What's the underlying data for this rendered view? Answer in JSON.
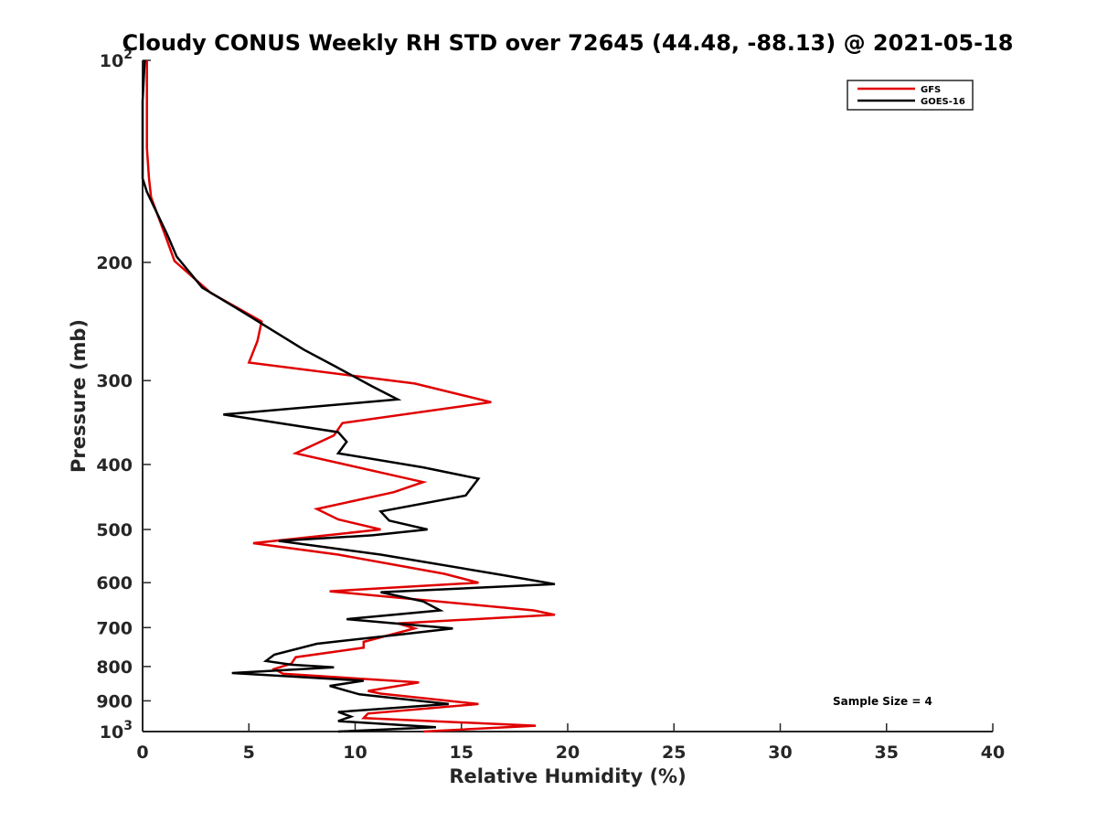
{
  "chart_data": {
    "type": "line",
    "title": "Cloudy CONUS Weekly RH STD over 72645 (44.48, -88.13) @ 2021-05-18",
    "xlabel": "Relative Humidity (%)",
    "ylabel": "Pressure (mb)",
    "xlim": [
      0,
      40
    ],
    "ylim": [
      100,
      1000
    ],
    "yscale": "log",
    "y_reversed": true,
    "x_ticks": [
      0,
      5,
      10,
      15,
      20,
      25,
      30,
      35,
      40
    ],
    "x_tick_labels": [
      "0",
      "5",
      "10",
      "15",
      "20",
      "25",
      "30",
      "35",
      "40"
    ],
    "y_ticks": [
      100,
      200,
      300,
      400,
      500,
      600,
      700,
      800,
      900,
      1000
    ],
    "y_tick_labels": [
      {
        "base": "10",
        "exp": "2"
      },
      {
        "base": "200",
        "exp": ""
      },
      {
        "base": "300",
        "exp": ""
      },
      {
        "base": "400",
        "exp": ""
      },
      {
        "base": "500",
        "exp": ""
      },
      {
        "base": "600",
        "exp": ""
      },
      {
        "base": "700",
        "exp": ""
      },
      {
        "base": "800",
        "exp": ""
      },
      {
        "base": "900",
        "exp": ""
      },
      {
        "base": "10",
        "exp": "3"
      }
    ],
    "grid": false,
    "legend_position": "top-right",
    "annotation": "Sample Size = 4",
    "series": [
      {
        "name": "GFS",
        "color": "#e00000",
        "points": [
          [
            0.2,
            100
          ],
          [
            0.2,
            115
          ],
          [
            0.2,
            135
          ],
          [
            0.3,
            150
          ],
          [
            0.4,
            160
          ],
          [
            1.0,
            180
          ],
          [
            1.5,
            199
          ],
          [
            3.2,
            222
          ],
          [
            5.6,
            245
          ],
          [
            5.4,
            262
          ],
          [
            5.0,
            282
          ],
          [
            12.8,
            303
          ],
          [
            16.4,
            323
          ],
          [
            9.4,
            347
          ],
          [
            9.0,
            362
          ],
          [
            7.2,
            385
          ],
          [
            13.2,
            425
          ],
          [
            11.8,
            440
          ],
          [
            8.2,
            466
          ],
          [
            9.2,
            483
          ],
          [
            11.2,
            500
          ],
          [
            5.2,
            524
          ],
          [
            9.2,
            545
          ],
          [
            14.2,
            582
          ],
          [
            15.8,
            600
          ],
          [
            8.8,
            618
          ],
          [
            18.4,
            660
          ],
          [
            19.4,
            670
          ],
          [
            12.0,
            690
          ],
          [
            12.8,
            702
          ],
          [
            10.4,
            735
          ],
          [
            10.4,
            750
          ],
          [
            7.2,
            775
          ],
          [
            7.0,
            792
          ],
          [
            6.2,
            807
          ],
          [
            6.6,
            820
          ],
          [
            13.0,
            845
          ],
          [
            10.6,
            870
          ],
          [
            11.2,
            878
          ],
          [
            15.8,
            910
          ],
          [
            10.6,
            940
          ],
          [
            10.4,
            955
          ],
          [
            18.5,
            980
          ],
          [
            13.2,
            1000
          ]
        ]
      },
      {
        "name": "GOES-16",
        "color": "#000000",
        "points": [
          [
            0.1,
            100
          ],
          [
            0.0,
            115
          ],
          [
            0.0,
            135
          ],
          [
            0.0,
            150
          ],
          [
            0.2,
            157
          ],
          [
            1.2,
            183
          ],
          [
            1.6,
            196
          ],
          [
            2.8,
            218
          ],
          [
            4.8,
            238
          ],
          [
            7.6,
            270
          ],
          [
            9.0,
            285
          ],
          [
            10.8,
            306
          ],
          [
            12.0,
            320
          ],
          [
            3.8,
            337
          ],
          [
            9.2,
            358
          ],
          [
            9.6,
            370
          ],
          [
            9.2,
            385
          ],
          [
            13.2,
            404
          ],
          [
            15.8,
            420
          ],
          [
            15.2,
            445
          ],
          [
            11.2,
            470
          ],
          [
            11.6,
            485
          ],
          [
            13.4,
            500
          ],
          [
            10.8,
            510
          ],
          [
            6.4,
            520
          ],
          [
            11.2,
            545
          ],
          [
            17.0,
            585
          ],
          [
            19.4,
            603
          ],
          [
            11.2,
            620
          ],
          [
            13.2,
            640
          ],
          [
            14.0,
            660
          ],
          [
            9.6,
            680
          ],
          [
            14.6,
            702
          ],
          [
            12.4,
            715
          ],
          [
            8.2,
            740
          ],
          [
            6.2,
            768
          ],
          [
            5.8,
            785
          ],
          [
            7.0,
            795
          ],
          [
            9.0,
            802
          ],
          [
            4.2,
            818
          ],
          [
            10.4,
            840
          ],
          [
            8.8,
            855
          ],
          [
            10.2,
            880
          ],
          [
            14.4,
            910
          ],
          [
            9.2,
            935
          ],
          [
            9.8,
            950
          ],
          [
            9.2,
            965
          ],
          [
            13.8,
            985
          ],
          [
            9.2,
            1000
          ]
        ]
      }
    ]
  }
}
